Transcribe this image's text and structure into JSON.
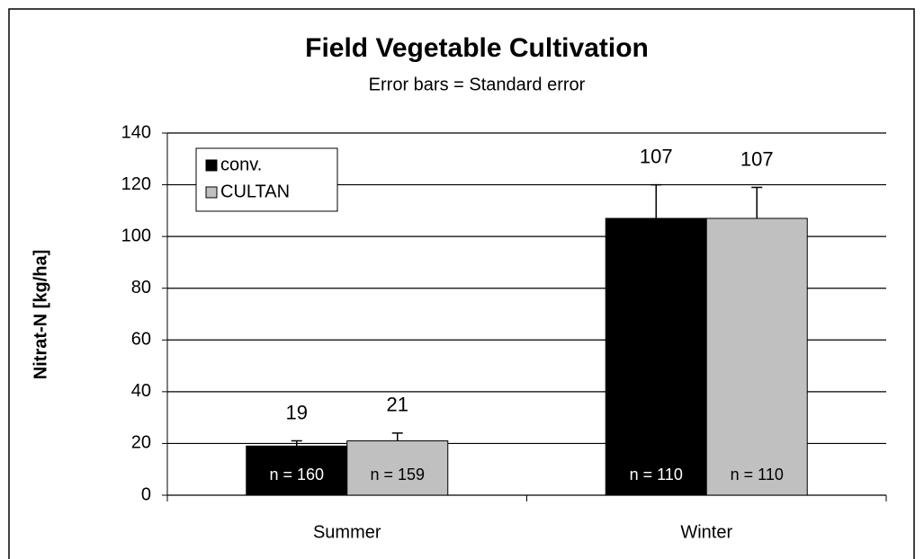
{
  "chart_data": {
    "type": "bar",
    "title": "Field Vegetable Cultivation",
    "subtitle": "Error bars = Standard error",
    "y_label": "Nitrat-N [kg/ha]",
    "categories": [
      "Summer",
      "Winter"
    ],
    "series": [
      {
        "name": "conv.",
        "color": "#000000",
        "values": [
          19,
          107
        ],
        "errors": [
          2,
          13
        ],
        "n_labels": [
          "n = 160",
          "n = 110"
        ]
      },
      {
        "name": "CULTAN",
        "color": "#c0c0c0",
        "values": [
          21,
          107
        ],
        "errors": [
          3,
          12
        ],
        "n_labels": [
          "n = 159",
          "n = 110"
        ]
      }
    ],
    "ylim": [
      0,
      140
    ],
    "yticks": [
      0,
      20,
      40,
      60,
      80,
      100,
      120,
      140
    ],
    "grid": true,
    "legend": "upper left"
  }
}
